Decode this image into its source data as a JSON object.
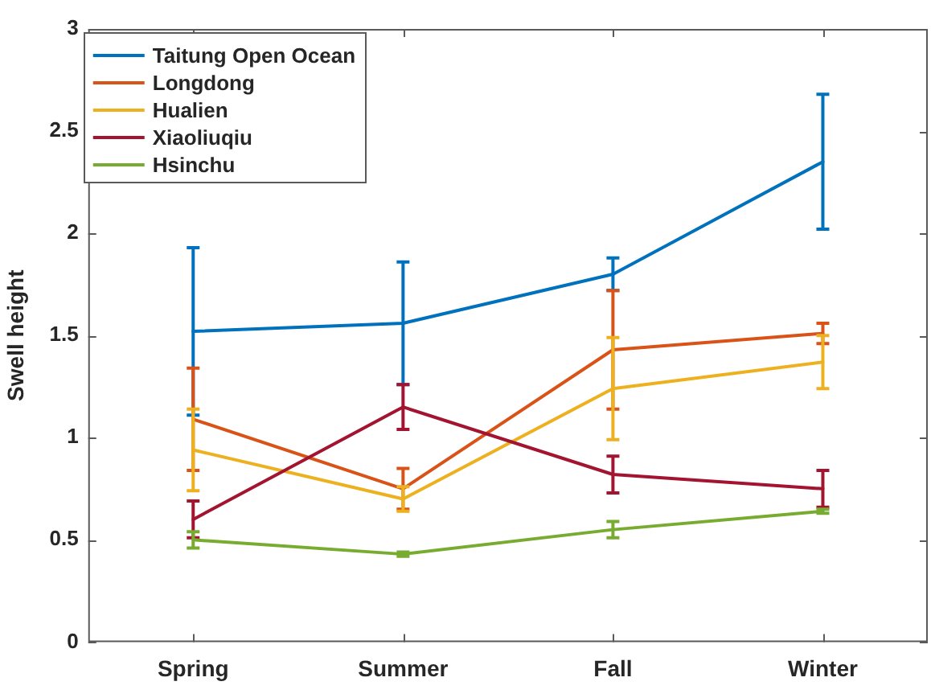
{
  "chart_data": {
    "type": "line",
    "ylabel": "Swell height",
    "categories": [
      "Spring",
      "Summer",
      "Fall",
      "Winter"
    ],
    "series": [
      {
        "name": "Taitung Open Ocean",
        "color": "#0072bd",
        "values": [
          1.52,
          1.56,
          1.8,
          2.35
        ],
        "errors": [
          0.41,
          0.3,
          0.08,
          0.33
        ]
      },
      {
        "name": "Longdong",
        "color": "#d95319",
        "values": [
          1.09,
          0.75,
          1.43,
          1.51
        ],
        "errors": [
          0.25,
          0.1,
          0.29,
          0.05
        ]
      },
      {
        "name": "Hualien",
        "color": "#edb120",
        "values": [
          0.94,
          0.7,
          1.24,
          1.37
        ],
        "errors": [
          0.2,
          0.06,
          0.25,
          0.13
        ]
      },
      {
        "name": "Xiaoliuqiu",
        "color": "#a2142f",
        "values": [
          0.6,
          1.15,
          0.82,
          0.75
        ],
        "errors": [
          0.09,
          0.11,
          0.09,
          0.09
        ]
      },
      {
        "name": "Hsinchu",
        "color": "#77ac30",
        "values": [
          0.5,
          0.43,
          0.55,
          0.64
        ],
        "errors": [
          0.04,
          0.01,
          0.04,
          0.01
        ]
      }
    ],
    "ylim": [
      0,
      3
    ],
    "yticks": [
      0,
      0.5,
      1,
      1.5,
      2,
      2.5,
      3
    ],
    "legend": "top left",
    "grid": false
  }
}
